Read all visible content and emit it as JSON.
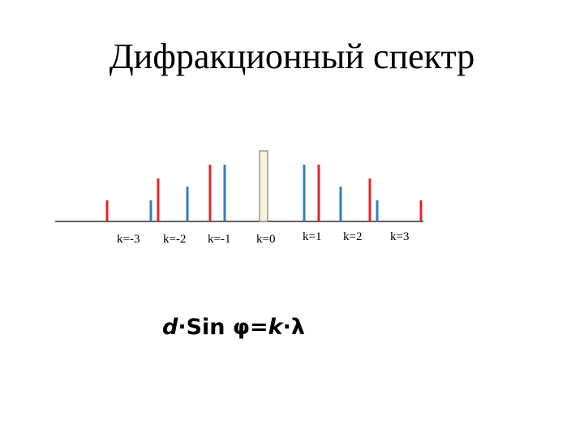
{
  "title": "Дифракционный спектр",
  "orders": [
    {
      "label": "k=-3"
    },
    {
      "label": "k=-2"
    },
    {
      "label": "k=-1"
    },
    {
      "label": "k=0"
    },
    {
      "label": "k=1"
    },
    {
      "label": "k=2"
    },
    {
      "label": "k=3"
    }
  ],
  "formula": {
    "d": "d",
    "dot1": "·",
    "sin": "Sin φ=",
    "k": "k",
    "dot2": "·",
    "lambda": "λ"
  },
  "colors": {
    "red_line": "#e3242b",
    "blue_line": "#2f7fc1",
    "central_fill": "#f7f3dc",
    "central_stroke": "#6b6b6b",
    "axis": "#000000"
  }
}
